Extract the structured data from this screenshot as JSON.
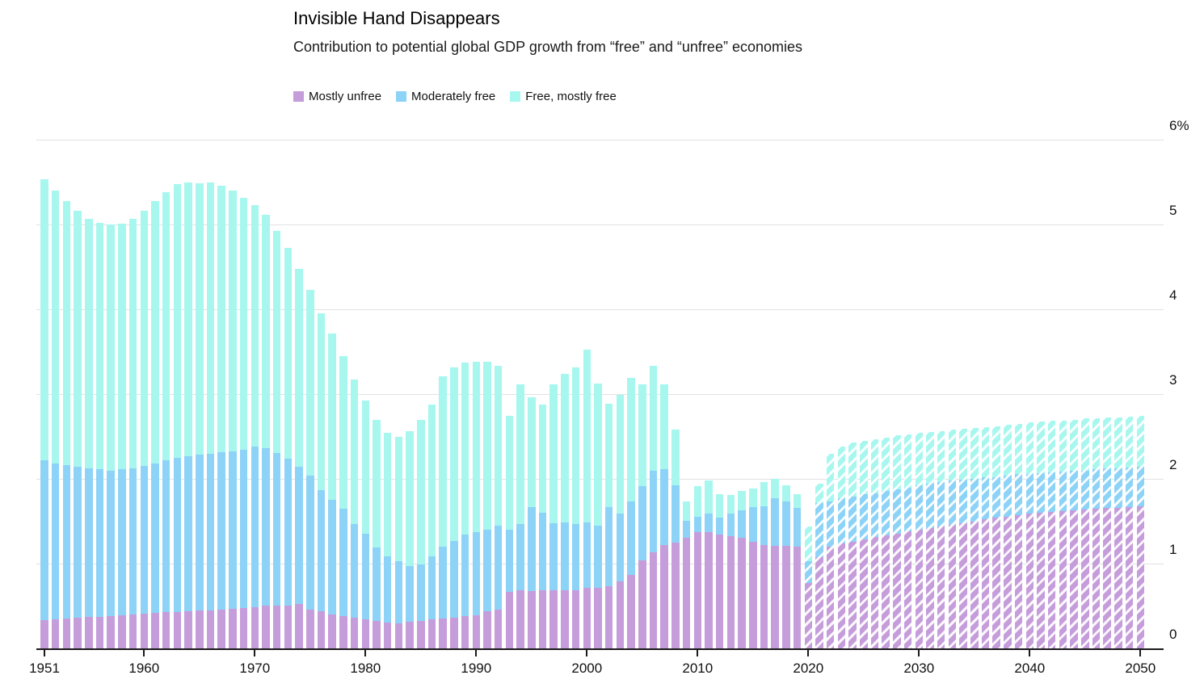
{
  "header": {
    "title": "Invisible Hand Disappears",
    "subtitle": "Contribution to potential global GDP growth from “free” and “unfree” economies"
  },
  "legend": [
    {
      "label": "Mostly unfree",
      "color": "#c69ddb"
    },
    {
      "label": "Moderately free",
      "color": "#8dd3f7"
    },
    {
      "label": "Free, mostly free",
      "color": "#a7f7ef"
    }
  ],
  "colors": {
    "mostly_unfree": "#c69ddb",
    "moderately_free": "#8dd3f7",
    "free_mostly_free": "#a7f7ef",
    "gridline": "#e2e2e2",
    "axis": "#1a1a1a"
  },
  "chart_data": {
    "type": "bar",
    "stacked": true,
    "title": "Invisible Hand Disappears",
    "subtitle": "Contribution to potential global GDP growth from “free” and “unfree” economies",
    "unit": "%",
    "xlabel": "",
    "ylabel": "",
    "ylim": [
      0,
      6
    ],
    "y_ticks": [
      0,
      1,
      2,
      3,
      4,
      5,
      6
    ],
    "y_tick_labels": [
      "0",
      "1",
      "2",
      "3",
      "4",
      "5",
      "6%"
    ],
    "x_start": 1951,
    "x_end": 2050,
    "x_tick_years": [
      1951,
      1960,
      1970,
      1980,
      1990,
      2000,
      2010,
      2020,
      2030,
      2040,
      2050
    ],
    "forecast_hatched_from_year": 2020,
    "grid": true,
    "legend_position": "top-left",
    "series": [
      {
        "name": "Mostly unfree",
        "color": "#c69ddb",
        "values": [
          0.33,
          0.34,
          0.35,
          0.36,
          0.37,
          0.37,
          0.38,
          0.39,
          0.4,
          0.41,
          0.42,
          0.43,
          0.43,
          0.44,
          0.45,
          0.45,
          0.46,
          0.47,
          0.48,
          0.49,
          0.5,
          0.5,
          0.5,
          0.52,
          0.46,
          0.44,
          0.4,
          0.38,
          0.36,
          0.34,
          0.32,
          0.3,
          0.3,
          0.31,
          0.32,
          0.34,
          0.35,
          0.36,
          0.38,
          0.39,
          0.44,
          0.46,
          0.67,
          0.69,
          0.68,
          0.69,
          0.69,
          0.69,
          0.69,
          0.71,
          0.71,
          0.73,
          0.79,
          0.87,
          1.04,
          1.13,
          1.22,
          1.25,
          1.3,
          1.37,
          1.37,
          1.34,
          1.32,
          1.3,
          1.26,
          1.22,
          1.21,
          1.21,
          1.2,
          0.77,
          1.08,
          1.2,
          1.24,
          1.26,
          1.29,
          1.31,
          1.33,
          1.35,
          1.38,
          1.4,
          1.42,
          1.44,
          1.46,
          1.48,
          1.5,
          1.52,
          1.54,
          1.55,
          1.57,
          1.59,
          1.6,
          1.61,
          1.62,
          1.63,
          1.64,
          1.65,
          1.66,
          1.66,
          1.67,
          1.68
        ]
      },
      {
        "name": "Moderately free",
        "color": "#8dd3f7",
        "values": [
          1.89,
          1.84,
          1.81,
          1.78,
          1.75,
          1.74,
          1.72,
          1.72,
          1.72,
          1.74,
          1.76,
          1.79,
          1.82,
          1.83,
          1.84,
          1.85,
          1.85,
          1.85,
          1.86,
          1.89,
          1.86,
          1.8,
          1.74,
          1.62,
          1.58,
          1.43,
          1.35,
          1.27,
          1.11,
          1.01,
          0.87,
          0.79,
          0.73,
          0.66,
          0.67,
          0.75,
          0.85,
          0.91,
          0.96,
          0.98,
          0.96,
          0.99,
          0.73,
          0.78,
          0.99,
          0.91,
          0.79,
          0.8,
          0.78,
          0.78,
          0.74,
          0.94,
          0.8,
          0.86,
          0.87,
          0.97,
          0.89,
          0.67,
          0.2,
          0.18,
          0.22,
          0.2,
          0.27,
          0.33,
          0.41,
          0.46,
          0.56,
          0.52,
          0.46,
          0.26,
          0.63,
          0.53,
          0.53,
          0.53,
          0.53,
          0.52,
          0.53,
          0.53,
          0.52,
          0.52,
          0.52,
          0.52,
          0.52,
          0.51,
          0.5,
          0.5,
          0.48,
          0.49,
          0.49,
          0.47,
          0.47,
          0.47,
          0.47,
          0.47,
          0.46,
          0.46,
          0.46,
          0.46,
          0.46,
          0.46
        ]
      },
      {
        "name": "Free, mostly free",
        "color": "#a7f7ef",
        "values": [
          3.31,
          3.22,
          3.12,
          3.02,
          2.95,
          2.91,
          2.9,
          2.9,
          2.95,
          3.01,
          3.1,
          3.16,
          3.23,
          3.23,
          3.2,
          3.2,
          3.15,
          3.08,
          2.97,
          2.85,
          2.75,
          2.62,
          2.48,
          2.34,
          2.19,
          2.08,
          1.96,
          1.8,
          1.7,
          1.57,
          1.51,
          1.45,
          1.47,
          1.59,
          1.71,
          1.79,
          2.01,
          2.04,
          2.03,
          2.01,
          1.98,
          1.88,
          1.34,
          1.64,
          1.29,
          1.28,
          1.63,
          1.75,
          1.84,
          2.03,
          1.67,
          1.22,
          1.4,
          1.46,
          1.2,
          1.23,
          1.0,
          0.66,
          0.23,
          0.36,
          0.39,
          0.28,
          0.22,
          0.23,
          0.22,
          0.28,
          0.23,
          0.19,
          0.16,
          0.41,
          0.23,
          0.57,
          0.61,
          0.64,
          0.63,
          0.64,
          0.63,
          0.63,
          0.62,
          0.62,
          0.61,
          0.6,
          0.6,
          0.6,
          0.6,
          0.59,
          0.6,
          0.6,
          0.59,
          0.61,
          0.61,
          0.61,
          0.6,
          0.6,
          0.61,
          0.6,
          0.6,
          0.6,
          0.6,
          0.6
        ]
      }
    ]
  }
}
